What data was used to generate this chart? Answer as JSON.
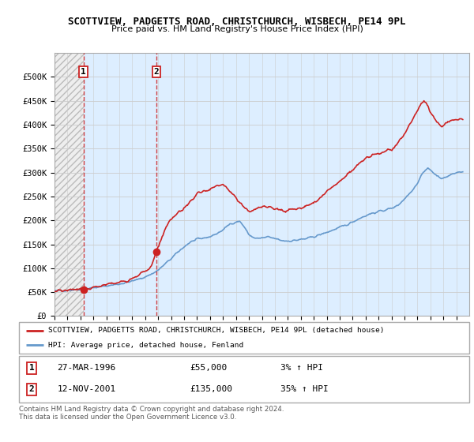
{
  "title": "SCOTTVIEW, PADGETTS ROAD, CHRISTCHURCH, WISBECH, PE14 9PL",
  "subtitle": "Price paid vs. HM Land Registry's House Price Index (HPI)",
  "legend_line1": "SCOTTVIEW, PADGETTS ROAD, CHRISTCHURCH, WISBECH, PE14 9PL (detached house)",
  "legend_line2": "HPI: Average price, detached house, Fenland",
  "footer": "Contains HM Land Registry data © Crown copyright and database right 2024.\nThis data is licensed under the Open Government Licence v3.0.",
  "sale1_date": "27-MAR-1996",
  "sale1_year": 1996.23,
  "sale1_price": 55000,
  "sale2_date": "12-NOV-2001",
  "sale2_year": 2001.87,
  "sale2_price": 135000,
  "hpi_color": "#6699cc",
  "price_color": "#cc2222",
  "dashed_color": "#cc2222",
  "bg_hatch_color": "#dddddd",
  "bg_blue_color": "#ddeeff",
  "ylim_min": 0,
  "ylim_max": 550000,
  "xmin": 1994,
  "xmax": 2026,
  "yticks": [
    0,
    50000,
    100000,
    150000,
    200000,
    250000,
    300000,
    350000,
    400000,
    450000,
    500000
  ],
  "ytick_labels": [
    "£0",
    "£50K",
    "£100K",
    "£150K",
    "£200K",
    "£250K",
    "£300K",
    "£350K",
    "£400K",
    "£450K",
    "£500K"
  ],
  "hpi_data": [
    [
      1994.0,
      52000
    ],
    [
      1994.5,
      53500
    ],
    [
      1995.0,
      54000
    ],
    [
      1995.5,
      55000
    ],
    [
      1996.0,
      56000
    ],
    [
      1996.5,
      57500
    ],
    [
      1997.0,
      59000
    ],
    [
      1997.5,
      61000
    ],
    [
      1998.0,
      63000
    ],
    [
      1998.5,
      65000
    ],
    [
      1999.0,
      67000
    ],
    [
      1999.5,
      70000
    ],
    [
      2000.0,
      73000
    ],
    [
      2000.5,
      77000
    ],
    [
      2001.0,
      82000
    ],
    [
      2001.5,
      88000
    ],
    [
      2002.0,
      96000
    ],
    [
      2002.5,
      108000
    ],
    [
      2003.0,
      120000
    ],
    [
      2003.5,
      133000
    ],
    [
      2004.0,
      145000
    ],
    [
      2004.5,
      155000
    ],
    [
      2005.0,
      160000
    ],
    [
      2005.5,
      163000
    ],
    [
      2006.0,
      166000
    ],
    [
      2006.5,
      172000
    ],
    [
      2007.0,
      180000
    ],
    [
      2007.5,
      192000
    ],
    [
      2008.0,
      197000
    ],
    [
      2008.3,
      198000
    ],
    [
      2008.6,
      188000
    ],
    [
      2009.0,
      170000
    ],
    [
      2009.5,
      162000
    ],
    [
      2010.0,
      163000
    ],
    [
      2010.5,
      165000
    ],
    [
      2011.0,
      162000
    ],
    [
      2011.5,
      158000
    ],
    [
      2012.0,
      157000
    ],
    [
      2012.5,
      158000
    ],
    [
      2013.0,
      160000
    ],
    [
      2013.5,
      162000
    ],
    [
      2014.0,
      166000
    ],
    [
      2014.5,
      170000
    ],
    [
      2015.0,
      175000
    ],
    [
      2015.5,
      180000
    ],
    [
      2016.0,
      185000
    ],
    [
      2016.5,
      190000
    ],
    [
      2017.0,
      197000
    ],
    [
      2017.5,
      204000
    ],
    [
      2018.0,
      210000
    ],
    [
      2018.5,
      215000
    ],
    [
      2019.0,
      218000
    ],
    [
      2019.5,
      222000
    ],
    [
      2020.0,
      225000
    ],
    [
      2020.5,
      232000
    ],
    [
      2021.0,
      245000
    ],
    [
      2021.5,
      260000
    ],
    [
      2022.0,
      278000
    ],
    [
      2022.3,
      295000
    ],
    [
      2022.6,
      305000
    ],
    [
      2022.8,
      310000
    ],
    [
      2023.0,
      305000
    ],
    [
      2023.3,
      298000
    ],
    [
      2023.5,
      292000
    ],
    [
      2023.8,
      290000
    ],
    [
      2024.0,
      288000
    ],
    [
      2024.3,
      292000
    ],
    [
      2024.6,
      295000
    ],
    [
      2025.0,
      300000
    ],
    [
      2025.5,
      302000
    ]
  ],
  "price_data": [
    [
      1994.0,
      52000
    ],
    [
      1994.5,
      53000
    ],
    [
      1995.0,
      54000
    ],
    [
      1995.5,
      55000
    ],
    [
      1996.0,
      56000
    ],
    [
      1996.23,
      55000
    ],
    [
      1996.5,
      57000
    ],
    [
      1997.0,
      60000
    ],
    [
      1997.5,
      63000
    ],
    [
      1998.0,
      66000
    ],
    [
      1998.5,
      68000
    ],
    [
      1999.0,
      71000
    ],
    [
      1999.5,
      74000
    ],
    [
      2000.0,
      79000
    ],
    [
      2000.5,
      86000
    ],
    [
      2001.0,
      94000
    ],
    [
      2001.5,
      105000
    ],
    [
      2001.87,
      135000
    ],
    [
      2002.0,
      145000
    ],
    [
      2002.3,
      165000
    ],
    [
      2002.6,
      185000
    ],
    [
      2003.0,
      200000
    ],
    [
      2003.3,
      210000
    ],
    [
      2003.6,
      218000
    ],
    [
      2004.0,
      225000
    ],
    [
      2004.5,
      240000
    ],
    [
      2005.0,
      255000
    ],
    [
      2005.5,
      262000
    ],
    [
      2006.0,
      265000
    ],
    [
      2006.3,
      268000
    ],
    [
      2006.6,
      272000
    ],
    [
      2007.0,
      275000
    ],
    [
      2007.3,
      268000
    ],
    [
      2007.6,
      260000
    ],
    [
      2007.8,
      255000
    ],
    [
      2008.0,
      248000
    ],
    [
      2008.3,
      238000
    ],
    [
      2008.6,
      228000
    ],
    [
      2009.0,
      220000
    ],
    [
      2009.3,
      222000
    ],
    [
      2009.6,
      225000
    ],
    [
      2010.0,
      228000
    ],
    [
      2010.3,
      230000
    ],
    [
      2010.6,
      228000
    ],
    [
      2011.0,
      225000
    ],
    [
      2011.3,
      222000
    ],
    [
      2011.6,
      220000
    ],
    [
      2012.0,
      220000
    ],
    [
      2012.3,
      222000
    ],
    [
      2012.6,
      224000
    ],
    [
      2013.0,
      226000
    ],
    [
      2013.3,
      228000
    ],
    [
      2013.6,
      232000
    ],
    [
      2014.0,
      238000
    ],
    [
      2014.5,
      248000
    ],
    [
      2015.0,
      260000
    ],
    [
      2015.5,
      272000
    ],
    [
      2016.0,
      282000
    ],
    [
      2016.5,
      292000
    ],
    [
      2017.0,
      305000
    ],
    [
      2017.5,
      318000
    ],
    [
      2018.0,
      328000
    ],
    [
      2018.5,
      335000
    ],
    [
      2019.0,
      340000
    ],
    [
      2019.5,
      345000
    ],
    [
      2020.0,
      348000
    ],
    [
      2020.5,
      360000
    ],
    [
      2021.0,
      382000
    ],
    [
      2021.5,
      405000
    ],
    [
      2022.0,
      428000
    ],
    [
      2022.3,
      445000
    ],
    [
      2022.5,
      448000
    ],
    [
      2022.8,
      440000
    ],
    [
      2023.0,
      425000
    ],
    [
      2023.3,
      415000
    ],
    [
      2023.5,
      408000
    ],
    [
      2023.8,
      400000
    ],
    [
      2024.0,
      398000
    ],
    [
      2024.3,
      405000
    ],
    [
      2024.6,
      408000
    ],
    [
      2025.0,
      410000
    ],
    [
      2025.5,
      410000
    ]
  ]
}
